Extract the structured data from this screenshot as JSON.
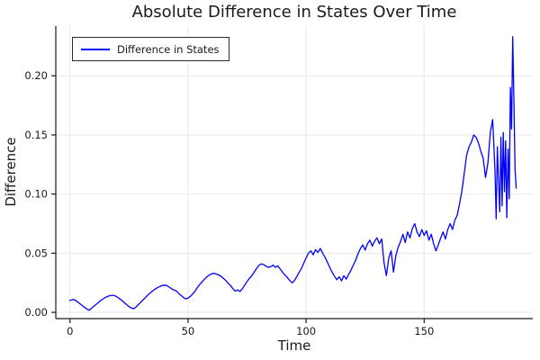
{
  "chart_data": {
    "type": "line",
    "title": "Absolute Difference in States Over Time",
    "xlabel": "Time",
    "ylabel": "Difference",
    "xlim": [
      -6,
      196
    ],
    "ylim": [
      -0.0053,
      0.242
    ],
    "xticks": [
      0,
      50,
      100,
      150
    ],
    "xtick_labels": [
      "0",
      "50",
      "100",
      "150"
    ],
    "yticks": [
      0.0,
      0.05,
      0.1,
      0.15,
      0.2
    ],
    "ytick_labels": [
      "0.00",
      "0.05",
      "0.10",
      "0.15",
      "0.20"
    ],
    "grid": true,
    "grid_color": "#e9e9e9",
    "axis_color": "#1a1a1a",
    "background": "#ffffff",
    "legend": {
      "position": "top-left"
    },
    "series": [
      {
        "name": "Difference in States",
        "color": "#0000ff",
        "points": [
          [
            0,
            0.01
          ],
          [
            1,
            0.0108
          ],
          [
            2,
            0.0105
          ],
          [
            3,
            0.0092
          ],
          [
            4,
            0.0076
          ],
          [
            5,
            0.006
          ],
          [
            6,
            0.0045
          ],
          [
            7,
            0.003
          ],
          [
            8,
            0.0018
          ],
          [
            9,
            0.0032
          ],
          [
            10,
            0.005
          ],
          [
            11,
            0.0066
          ],
          [
            12,
            0.0082
          ],
          [
            13,
            0.01
          ],
          [
            14,
            0.0114
          ],
          [
            15,
            0.0126
          ],
          [
            16,
            0.0135
          ],
          [
            17,
            0.0141
          ],
          [
            18,
            0.0145
          ],
          [
            19,
            0.014
          ],
          [
            20,
            0.013
          ],
          [
            21,
            0.0116
          ],
          [
            22,
            0.01
          ],
          [
            23,
            0.0082
          ],
          [
            24,
            0.0065
          ],
          [
            25,
            0.0049
          ],
          [
            26,
            0.0036
          ],
          [
            27,
            0.003
          ],
          [
            28,
            0.0046
          ],
          [
            29,
            0.0066
          ],
          [
            30,
            0.0086
          ],
          [
            31,
            0.0106
          ],
          [
            32,
            0.0126
          ],
          [
            33,
            0.0146
          ],
          [
            34,
            0.0165
          ],
          [
            35,
            0.0181
          ],
          [
            36,
            0.0195
          ],
          [
            37,
            0.0208
          ],
          [
            38,
            0.0218
          ],
          [
            39,
            0.0226
          ],
          [
            40,
            0.023
          ],
          [
            41,
            0.0226
          ],
          [
            42,
            0.0214
          ],
          [
            43,
            0.02
          ],
          [
            44,
            0.0188
          ],
          [
            45,
            0.0182
          ],
          [
            46,
            0.016
          ],
          [
            47,
            0.0144
          ],
          [
            48,
            0.0126
          ],
          [
            49,
            0.0114
          ],
          [
            50,
            0.012
          ],
          [
            51,
            0.0136
          ],
          [
            52,
            0.0156
          ],
          [
            53,
            0.018
          ],
          [
            54,
            0.021
          ],
          [
            55,
            0.0236
          ],
          [
            56,
            0.026
          ],
          [
            57,
            0.028
          ],
          [
            58,
            0.03
          ],
          [
            59,
            0.0315
          ],
          [
            60,
            0.0326
          ],
          [
            61,
            0.033
          ],
          [
            62,
            0.0324
          ],
          [
            63,
            0.0316
          ],
          [
            64,
            0.0305
          ],
          [
            65,
            0.0286
          ],
          [
            66,
            0.027
          ],
          [
            67,
            0.0246
          ],
          [
            68,
            0.0226
          ],
          [
            69,
            0.02
          ],
          [
            70,
            0.018
          ],
          [
            71,
            0.019
          ],
          [
            72,
            0.0176
          ],
          [
            73,
            0.02
          ],
          [
            74,
            0.023
          ],
          [
            75,
            0.026
          ],
          [
            76,
            0.0286
          ],
          [
            77,
            0.031
          ],
          [
            78,
            0.034
          ],
          [
            79,
            0.037
          ],
          [
            80,
            0.0396
          ],
          [
            81,
            0.041
          ],
          [
            82,
            0.0404
          ],
          [
            83,
            0.039
          ],
          [
            84,
            0.038
          ],
          [
            85,
            0.0386
          ],
          [
            86,
            0.04
          ],
          [
            87,
            0.038
          ],
          [
            88,
            0.0394
          ],
          [
            89,
            0.0366
          ],
          [
            90,
            0.034
          ],
          [
            91,
            0.0316
          ],
          [
            92,
            0.0296
          ],
          [
            93,
            0.027
          ],
          [
            94,
            0.025
          ],
          [
            95,
            0.0266
          ],
          [
            96,
            0.03
          ],
          [
            97,
            0.0336
          ],
          [
            98,
            0.037
          ],
          [
            99,
            0.0416
          ],
          [
            100,
            0.046
          ],
          [
            101,
            0.05
          ],
          [
            102,
            0.052
          ],
          [
            103,
            0.0486
          ],
          [
            104,
            0.053
          ],
          [
            105,
            0.0506
          ],
          [
            106,
            0.054
          ],
          [
            107,
            0.05
          ],
          [
            108,
            0.0466
          ],
          [
            109,
            0.0426
          ],
          [
            110,
            0.038
          ],
          [
            111,
            0.034
          ],
          [
            112,
            0.0306
          ],
          [
            113,
            0.0276
          ],
          [
            114,
            0.03
          ],
          [
            115,
            0.0266
          ],
          [
            116,
            0.031
          ],
          [
            117,
            0.028
          ],
          [
            118,
            0.032
          ],
          [
            119,
            0.0356
          ],
          [
            120,
            0.04
          ],
          [
            121,
            0.044
          ],
          [
            122,
            0.0496
          ],
          [
            123,
            0.054
          ],
          [
            124,
            0.057
          ],
          [
            125,
            0.0526
          ],
          [
            126,
            0.058
          ],
          [
            127,
            0.061
          ],
          [
            128,
            0.056
          ],
          [
            129,
            0.06
          ],
          [
            130,
            0.063
          ],
          [
            131,
            0.058
          ],
          [
            132,
            0.062
          ],
          [
            133,
            0.042
          ],
          [
            134,
            0.031
          ],
          [
            135,
            0.046
          ],
          [
            136,
            0.052
          ],
          [
            137,
            0.034
          ],
          [
            138,
            0.048
          ],
          [
            139,
            0.055
          ],
          [
            140,
            0.06
          ],
          [
            141,
            0.066
          ],
          [
            142,
            0.059
          ],
          [
            143,
            0.068
          ],
          [
            144,
            0.063
          ],
          [
            145,
            0.071
          ],
          [
            146,
            0.075
          ],
          [
            147,
            0.068
          ],
          [
            148,
            0.064
          ],
          [
            149,
            0.07
          ],
          [
            150,
            0.065
          ],
          [
            151,
            0.069
          ],
          [
            152,
            0.061
          ],
          [
            153,
            0.066
          ],
          [
            154,
            0.058
          ],
          [
            155,
            0.052
          ],
          [
            156,
            0.057
          ],
          [
            157,
            0.063
          ],
          [
            158,
            0.068
          ],
          [
            159,
            0.062
          ],
          [
            160,
            0.07
          ],
          [
            161,
            0.075
          ],
          [
            162,
            0.07
          ],
          [
            163,
            0.078
          ],
          [
            164,
            0.082
          ],
          [
            165,
            0.092
          ],
          [
            166,
            0.103
          ],
          [
            167,
            0.118
          ],
          [
            168,
            0.133
          ],
          [
            169,
            0.14
          ],
          [
            170,
            0.144
          ],
          [
            171,
            0.15
          ],
          [
            172,
            0.148
          ],
          [
            173,
            0.143
          ],
          [
            174,
            0.136
          ],
          [
            175,
            0.13
          ],
          [
            176,
            0.114
          ],
          [
            177,
            0.126
          ],
          [
            178,
            0.152
          ],
          [
            179,
            0.163
          ],
          [
            180,
            0.12
          ],
          [
            180.5,
            0.079
          ],
          [
            181,
            0.14
          ],
          [
            181.5,
            0.11
          ],
          [
            182,
            0.085
          ],
          [
            182.5,
            0.148
          ],
          [
            183,
            0.09
          ],
          [
            183.5,
            0.152
          ],
          [
            184,
            0.102
          ],
          [
            184.5,
            0.145
          ],
          [
            185,
            0.08
          ],
          [
            185.5,
            0.138
          ],
          [
            186,
            0.096
          ],
          [
            186.5,
            0.19
          ],
          [
            187,
            0.155
          ],
          [
            187.5,
            0.233
          ],
          [
            188,
            0.18
          ],
          [
            188.5,
            0.12
          ],
          [
            189,
            0.105
          ]
        ]
      }
    ]
  }
}
